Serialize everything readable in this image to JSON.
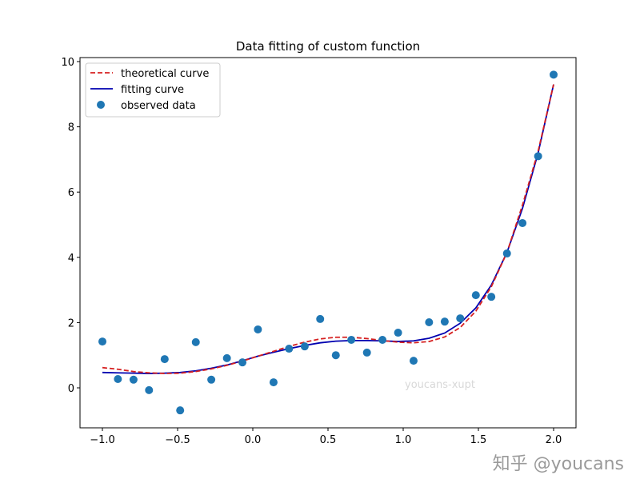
{
  "chart_data": {
    "type": "scatter",
    "title": "Data fitting of custom function",
    "xlabel": "",
    "ylabel": "",
    "xlim": [
      -1.15,
      2.15
    ],
    "ylim": [
      -1.2,
      10.2
    ],
    "xticks": [
      -1.0,
      -0.5,
      0.0,
      0.5,
      1.0,
      1.5,
      2.0
    ],
    "xtick_labels": [
      "−1.0",
      "−0.5",
      "0.0",
      "0.5",
      "1.0",
      "1.5",
      "2.0"
    ],
    "yticks": [
      0,
      2,
      4,
      6,
      8,
      10
    ],
    "ytick_labels": [
      "0",
      "2",
      "4",
      "6",
      "8",
      "10"
    ],
    "grid": false,
    "legend_position": "top-left",
    "x": [
      -1,
      -0.897,
      -0.793,
      -0.69,
      -0.586,
      -0.483,
      -0.379,
      -0.276,
      -0.172,
      -0.069,
      0.034,
      0.138,
      0.241,
      0.345,
      0.448,
      0.552,
      0.655,
      0.759,
      0.862,
      0.966,
      1.069,
      1.172,
      1.276,
      1.379,
      1.483,
      1.586,
      1.69,
      1.793,
      1.897,
      2.0
    ],
    "series": [
      {
        "name": "theoretical curve",
        "kind": "line",
        "style": "dashed",
        "color": "#d62020",
        "values": [
          0.62,
          0.57,
          0.5,
          0.46,
          0.44,
          0.45,
          0.5,
          0.58,
          0.69,
          0.82,
          0.97,
          1.12,
          1.27,
          1.4,
          1.5,
          1.55,
          1.55,
          1.51,
          1.45,
          1.4,
          1.38,
          1.42,
          1.56,
          1.85,
          2.35,
          3.1,
          4.15,
          5.6,
          7.25,
          9.3
        ]
      },
      {
        "name": "fitting curve",
        "kind": "line",
        "style": "solid",
        "color": "#0000b0",
        "values": [
          0.47,
          0.46,
          0.45,
          0.44,
          0.45,
          0.47,
          0.52,
          0.6,
          0.7,
          0.83,
          0.97,
          1.09,
          1.2,
          1.3,
          1.38,
          1.43,
          1.45,
          1.45,
          1.44,
          1.42,
          1.44,
          1.52,
          1.68,
          1.98,
          2.45,
          3.15,
          4.15,
          5.5,
          7.2,
          9.3
        ]
      },
      {
        "name": "observed data",
        "kind": "scatter",
        "color": "#1f77b4",
        "values": [
          1.42,
          0.27,
          0.25,
          -0.07,
          0.88,
          -0.69,
          1.4,
          0.25,
          0.91,
          0.78,
          1.79,
          0.17,
          1.2,
          1.27,
          2.11,
          1.0,
          1.47,
          1.08,
          1.47,
          1.69,
          0.83,
          2.01,
          2.03,
          2.13,
          2.84,
          2.79,
          4.12,
          5.05,
          7.1,
          9.6
        ]
      }
    ]
  },
  "watermarks": {
    "inner": "youcans-xupt",
    "corner": "知乎 @youcans"
  }
}
